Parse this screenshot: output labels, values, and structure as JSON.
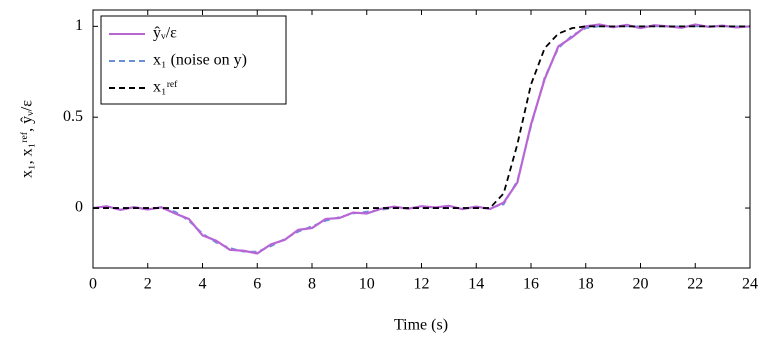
{
  "chart_data": {
    "type": "line",
    "xlabel": "Time (s)",
    "ylabel": "x₁, x₁ʳᵉᶠ, ŷᵥ/ε",
    "x": [
      0,
      0.5,
      1,
      1.5,
      2,
      2.5,
      3,
      3.5,
      4,
      4.5,
      5,
      5.5,
      6,
      6.5,
      7,
      7.5,
      8,
      8.5,
      9,
      9.5,
      10,
      10.5,
      11,
      11.5,
      12,
      12.5,
      13,
      13.5,
      14,
      14.5,
      15,
      15.5,
      16,
      16.5,
      17,
      17.5,
      18,
      18.5,
      19,
      19.5,
      20,
      20.5,
      21,
      21.5,
      22,
      22.5,
      23,
      23.5,
      24
    ],
    "series": [
      {
        "name": "ŷᵥ/ε",
        "color": "#b866d6",
        "dash": false,
        "values": [
          0,
          0.01,
          -0.01,
          0.005,
          -0.008,
          0.004,
          -0.03,
          -0.06,
          -0.15,
          -0.18,
          -0.23,
          -0.235,
          -0.25,
          -0.2,
          -0.175,
          -0.12,
          -0.11,
          -0.06,
          -0.055,
          -0.025,
          -0.03,
          -0.005,
          0.008,
          -0.004,
          0.01,
          0.003,
          0.012,
          -0.006,
          0.008,
          -0.005,
          0.03,
          0.14,
          0.46,
          0.71,
          0.89,
          0.94,
          1.0,
          1.01,
          0.995,
          1.008,
          0.99,
          1.006,
          1.0,
          0.992,
          1.01,
          0.997,
          1.004,
          0.994,
          1.0
        ]
      },
      {
        "name": "x₁ (noise on y)",
        "color": "#6a8fd6",
        "dash": true,
        "values": [
          0,
          0,
          0,
          0,
          0,
          0,
          -0.02,
          -0.07,
          -0.14,
          -0.19,
          -0.22,
          -0.24,
          -0.24,
          -0.21,
          -0.17,
          -0.13,
          -0.1,
          -0.07,
          -0.05,
          -0.03,
          -0.02,
          -0.01,
          0,
          0,
          0,
          0,
          0,
          0,
          0,
          0,
          0.02,
          0.15,
          0.45,
          0.72,
          0.88,
          0.95,
          0.99,
          1,
          1,
          1,
          1,
          1,
          1,
          1,
          1,
          1,
          1,
          1,
          1
        ]
      },
      {
        "name": "x₁ʳᵉᶠ",
        "color": "#000000",
        "dash": true,
        "values": [
          0,
          0,
          0,
          0,
          0,
          0,
          0,
          0,
          0,
          0,
          0,
          0,
          0,
          0,
          0,
          0,
          0,
          0,
          0,
          0,
          0,
          0,
          0,
          0,
          0,
          0,
          0,
          0,
          0,
          0,
          0.08,
          0.35,
          0.68,
          0.88,
          0.96,
          0.99,
          1,
          1,
          1,
          1,
          1,
          1,
          1,
          1,
          1,
          1,
          1,
          1,
          1
        ]
      }
    ],
    "xlim": [
      0,
      24
    ],
    "xticks": [
      0,
      2,
      4,
      6,
      8,
      10,
      12,
      14,
      16,
      18,
      20,
      22,
      24
    ],
    "ylim": [
      -0.33,
      1.09
    ],
    "yticks": [
      0,
      0.5,
      1
    ],
    "legend": "upper-left"
  }
}
